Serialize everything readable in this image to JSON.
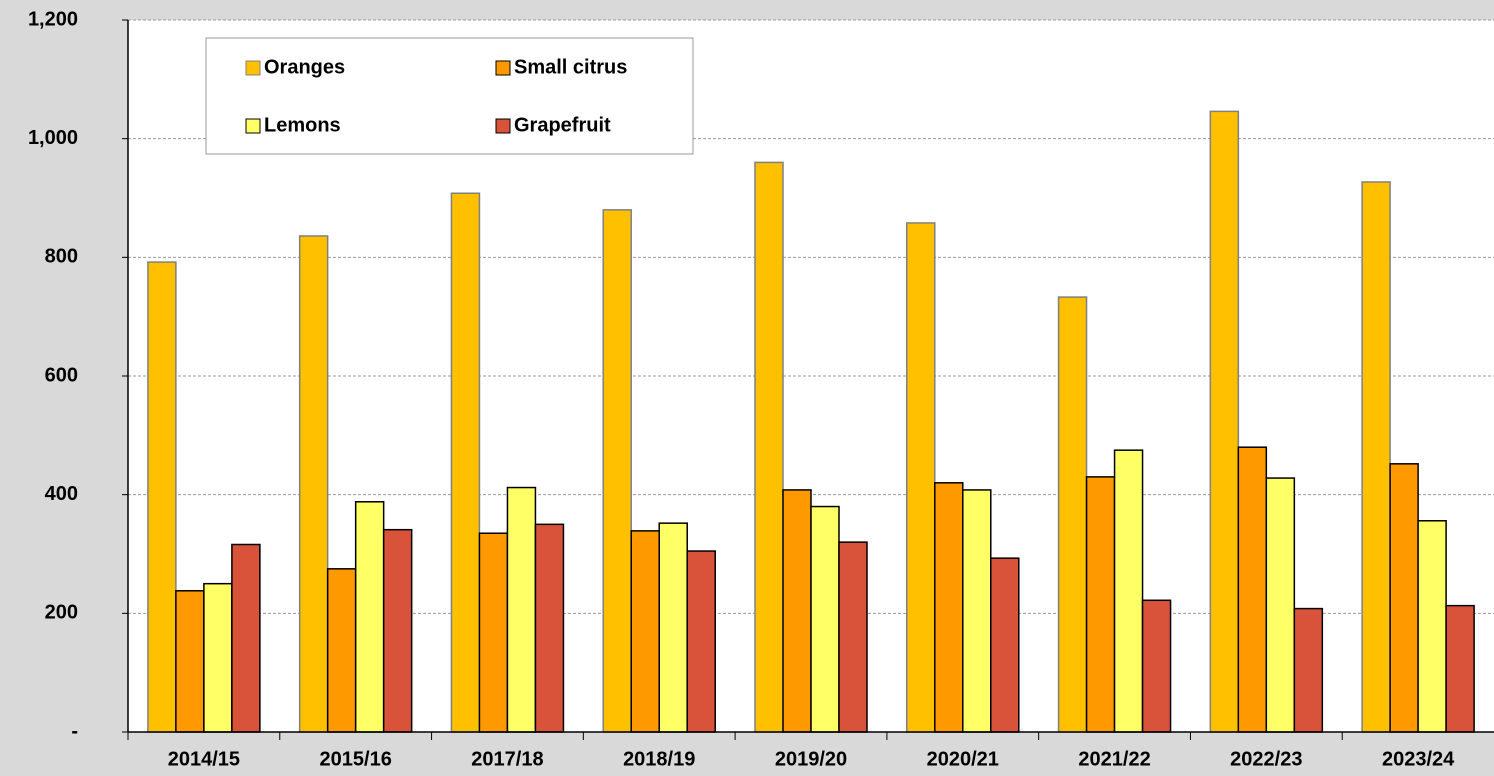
{
  "chart_data": {
    "type": "bar",
    "categories": [
      "2014/15",
      "2015/16",
      "2017/18",
      "2018/19",
      "2019/20",
      "2020/21",
      "2021/22",
      "2022/23",
      "2023/24"
    ],
    "series": [
      {
        "name": "Oranges",
        "color": "#FFC000",
        "values": [
          792,
          836,
          908,
          880,
          960,
          858,
          733,
          1046,
          927
        ]
      },
      {
        "name": "Small citrus",
        "color": "#FF9900",
        "values": [
          238,
          275,
          335,
          339,
          408,
          420,
          430,
          480,
          452
        ]
      },
      {
        "name": "Lemons",
        "color": "#FFFF66",
        "values": [
          250,
          388,
          412,
          352,
          380,
          408,
          475,
          428,
          356
        ]
      },
      {
        "name": "Grapefruit",
        "color": "#D9533B",
        "values": [
          316,
          341,
          350,
          305,
          320,
          293,
          222,
          208,
          213
        ]
      }
    ],
    "ylim": [
      0,
      1200
    ],
    "yticks": [
      {
        "value": 0,
        "label": "-"
      },
      200,
      400,
      600,
      800,
      {
        "value": 1000,
        "label": "1,000"
      },
      {
        "value": 1200,
        "label": "1,200"
      }
    ],
    "grid": true,
    "legend": "top-left"
  }
}
